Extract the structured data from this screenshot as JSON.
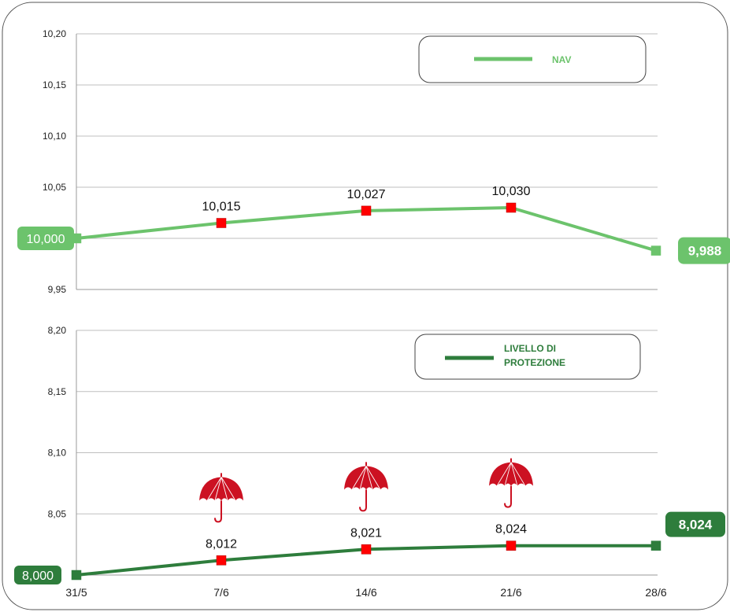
{
  "colors": {
    "nav": "#6cc36c",
    "protection": "#2e7d3c",
    "marker_highlight": "#ff0000",
    "umbrella": "#cc1122",
    "grid": "#bfbfbf",
    "axis": "#9a9a9a",
    "frame": "#555555"
  },
  "icons": {
    "protection_marker": "umbrella-icon"
  },
  "chart_data": [
    {
      "type": "line",
      "categories": [
        "31/5",
        "7/6",
        "14/6",
        "21/6",
        "28/6"
      ],
      "series": [
        {
          "name": "NAV",
          "values": [
            10.0,
            10.015,
            10.027,
            10.03,
            9.988
          ],
          "labels": [
            "10,000",
            "10,015",
            "10,027",
            "10,030",
            "9,988"
          ]
        }
      ],
      "ylim": [
        9.95,
        10.2
      ],
      "yticks": [
        9.95,
        10.0,
        10.05,
        10.1,
        10.15,
        10.2
      ],
      "ytick_labels": [
        "9,95",
        "",
        "10,05",
        "10,10",
        "10,15",
        "10,20"
      ],
      "grid": true,
      "legend": "top-right",
      "xlabel": "",
      "ylabel": ""
    },
    {
      "type": "line",
      "categories": [
        "31/5",
        "7/6",
        "14/6",
        "21/6",
        "28/6"
      ],
      "series": [
        {
          "name": "LIVELLO DI PROTEZIONE",
          "name_lines": [
            "LIVELLO DI",
            "PROTEZIONE"
          ],
          "values": [
            8.0,
            8.012,
            8.021,
            8.024,
            8.024
          ],
          "labels": [
            "8,000",
            "8,012",
            "8,021",
            "8,024",
            "8,024"
          ]
        }
      ],
      "ylim": [
        8.0,
        8.2
      ],
      "yticks": [
        8.0,
        8.05,
        8.1,
        8.15,
        8.2
      ],
      "ytick_labels": [
        "",
        "8,05",
        "8,10",
        "8,15",
        "8,20"
      ],
      "grid": true,
      "legend": "top-right",
      "xlabel": "",
      "ylabel": ""
    }
  ]
}
